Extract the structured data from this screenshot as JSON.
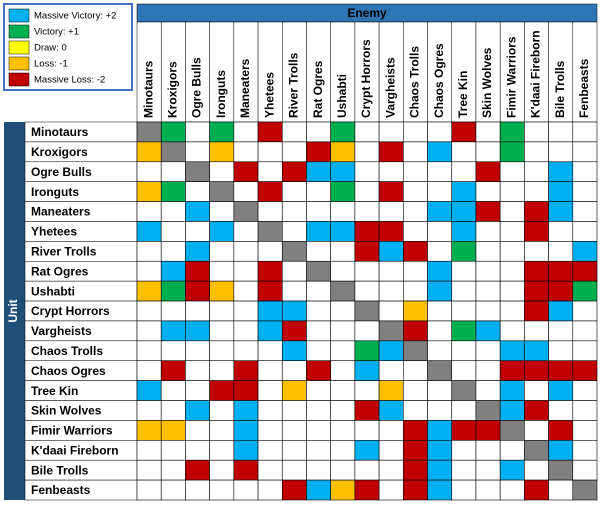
{
  "legend": [
    {
      "label": "Massive Victory: +2",
      "value": 2,
      "color": "#00b0f0"
    },
    {
      "label": "Victory: +1",
      "value": 1,
      "color": "#00b050"
    },
    {
      "label": "Draw: 0",
      "value": 0,
      "color": "#ffff00"
    },
    {
      "label": "Loss: -1",
      "value": -1,
      "color": "#ffc000"
    },
    {
      "label": "Massive Loss: -2",
      "value": -2,
      "color": "#c00000"
    }
  ],
  "self_color": "#808080",
  "enemy_label": "Enemy",
  "unit_label": "Unit",
  "columns": [
    "Minotaurs",
    "Kroxigors",
    "Ogre Bulls",
    "Ironguts",
    "Maneaters",
    "Yhetees",
    "River Trolls",
    "Rat Ogres",
    "Ushabti",
    "Crypt Horrors",
    "Vargheists",
    "Chaos Trolls",
    "Chaos Ogres",
    "Tree Kin",
    "Skin Wolves",
    "Fimir Warriors",
    "K'daai Fireborn",
    "Bile Trolls",
    "Fenbeasts"
  ],
  "rows": [
    {
      "label": "Minotaurs",
      "cells": [
        null,
        1,
        null,
        1,
        null,
        -2,
        null,
        null,
        1,
        null,
        null,
        null,
        null,
        -2,
        null,
        1,
        null,
        null,
        null
      ]
    },
    {
      "label": "Kroxigors",
      "cells": [
        -1,
        null,
        null,
        -1,
        null,
        null,
        null,
        -2,
        -1,
        null,
        -2,
        null,
        2,
        null,
        null,
        1,
        null,
        null,
        null
      ]
    },
    {
      "label": "Ogre Bulls",
      "cells": [
        null,
        null,
        null,
        null,
        -2,
        null,
        -2,
        2,
        2,
        null,
        null,
        null,
        null,
        null,
        -2,
        null,
        null,
        2,
        null
      ]
    },
    {
      "label": "Ironguts",
      "cells": [
        -1,
        1,
        null,
        null,
        null,
        -2,
        null,
        null,
        1,
        null,
        -2,
        null,
        null,
        2,
        null,
        null,
        null,
        2,
        null
      ]
    },
    {
      "label": "Maneaters",
      "cells": [
        null,
        null,
        2,
        null,
        null,
        null,
        null,
        null,
        null,
        null,
        null,
        null,
        2,
        2,
        -2,
        null,
        -2,
        2,
        null
      ]
    },
    {
      "label": "Yhetees",
      "cells": [
        2,
        null,
        null,
        2,
        null,
        null,
        null,
        2,
        2,
        -2,
        -2,
        null,
        null,
        2,
        null,
        null,
        -2,
        null,
        null
      ]
    },
    {
      "label": "River Trolls",
      "cells": [
        null,
        null,
        2,
        null,
        null,
        null,
        null,
        null,
        null,
        -2,
        2,
        -2,
        null,
        1,
        null,
        null,
        null,
        null,
        2
      ]
    },
    {
      "label": "Rat Ogres",
      "cells": [
        null,
        2,
        -2,
        null,
        null,
        -2,
        null,
        null,
        null,
        null,
        null,
        null,
        2,
        null,
        null,
        null,
        -2,
        -2,
        -2
      ]
    },
    {
      "label": "Ushabti",
      "cells": [
        -1,
        1,
        -2,
        -1,
        null,
        -2,
        null,
        null,
        null,
        null,
        null,
        null,
        2,
        null,
        null,
        null,
        -2,
        -2,
        1
      ]
    },
    {
      "label": "Crypt Horrors",
      "cells": [
        null,
        null,
        null,
        null,
        null,
        2,
        2,
        null,
        null,
        null,
        null,
        -1,
        null,
        null,
        null,
        null,
        -2,
        2,
        null
      ]
    },
    {
      "label": "Vargheists",
      "cells": [
        null,
        2,
        2,
        null,
        null,
        2,
        -2,
        null,
        null,
        null,
        null,
        -2,
        null,
        1,
        2,
        null,
        null,
        null,
        null
      ]
    },
    {
      "label": "Chaos Trolls",
      "cells": [
        null,
        null,
        null,
        null,
        null,
        null,
        2,
        null,
        null,
        1,
        2,
        null,
        null,
        null,
        null,
        2,
        2,
        null,
        null
      ]
    },
    {
      "label": "Chaos Ogres",
      "cells": [
        null,
        -2,
        null,
        null,
        -2,
        null,
        null,
        -2,
        null,
        2,
        null,
        null,
        null,
        null,
        null,
        -2,
        -2,
        -2,
        -2
      ]
    },
    {
      "label": "Tree Kin",
      "cells": [
        2,
        null,
        null,
        -2,
        -2,
        null,
        -1,
        null,
        null,
        null,
        -1,
        null,
        null,
        null,
        null,
        2,
        null,
        2,
        null
      ]
    },
    {
      "label": "Skin Wolves",
      "cells": [
        null,
        null,
        2,
        null,
        2,
        null,
        null,
        null,
        null,
        -2,
        2,
        null,
        null,
        null,
        null,
        2,
        -2,
        null,
        null
      ]
    },
    {
      "label": "Fimir Warriors",
      "cells": [
        -1,
        -1,
        null,
        null,
        2,
        null,
        null,
        null,
        null,
        null,
        null,
        -2,
        2,
        -2,
        -2,
        null,
        null,
        -2,
        null
      ]
    },
    {
      "label": "K'daai Fireborn",
      "cells": [
        null,
        null,
        null,
        null,
        2,
        null,
        null,
        null,
        null,
        2,
        null,
        -2,
        2,
        null,
        null,
        null,
        null,
        2,
        null
      ]
    },
    {
      "label": "Bile Trolls",
      "cells": [
        null,
        null,
        -2,
        null,
        -2,
        null,
        null,
        null,
        null,
        null,
        null,
        -2,
        2,
        null,
        null,
        2,
        null,
        null,
        null
      ]
    },
    {
      "label": "Fenbeasts",
      "cells": [
        null,
        null,
        null,
        null,
        null,
        null,
        -2,
        2,
        -1,
        -2,
        null,
        -2,
        2,
        null,
        null,
        null,
        -2,
        null,
        null
      ]
    }
  ]
}
